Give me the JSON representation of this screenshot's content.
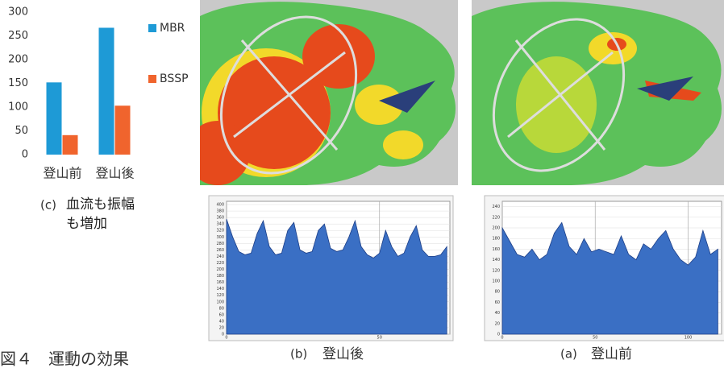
{
  "figure_caption": "図４　運動の効果",
  "chart_data": [
    {
      "type": "bar",
      "categories": [
        "登山前",
        "登山後"
      ],
      "series": [
        {
          "name": "MBR",
          "color": "#1e9ad6",
          "values": [
            152,
            267
          ]
        },
        {
          "name": "BSSP",
          "color": "#f0642d",
          "values": [
            41,
            103
          ]
        }
      ],
      "ylim": [
        0,
        300
      ],
      "yticks": [
        0,
        50,
        100,
        150,
        200,
        250,
        300
      ],
      "legend": "right",
      "caption_label": "(c)",
      "caption": "血流も振幅も増加"
    },
    {
      "type": "area",
      "color": "#3a6fc4",
      "caption_label": "(b)",
      "caption": "登山後",
      "x": [
        0,
        2,
        4,
        6,
        8,
        10,
        12,
        14,
        16,
        18,
        20,
        22,
        24,
        26,
        28,
        30,
        32,
        34,
        36,
        38,
        40,
        42,
        44,
        46,
        48,
        50,
        52,
        54,
        56,
        58,
        60,
        62,
        64,
        66,
        68,
        70,
        72
      ],
      "values": [
        355,
        300,
        255,
        245,
        250,
        310,
        350,
        270,
        245,
        250,
        320,
        345,
        260,
        250,
        255,
        320,
        340,
        265,
        255,
        260,
        300,
        350,
        270,
        245,
        235,
        250,
        320,
        270,
        240,
        250,
        300,
        335,
        260,
        240,
        240,
        245,
        270
      ],
      "xlim": [
        0,
        73
      ],
      "xticks": [
        0,
        50
      ],
      "ylim": [
        0,
        410
      ],
      "yticks": [
        0,
        20,
        40,
        60,
        80,
        100,
        120,
        140,
        160,
        180,
        200,
        220,
        240,
        260,
        280,
        300,
        320,
        340,
        360,
        380,
        400
      ],
      "grid": true
    },
    {
      "type": "area",
      "color": "#3a6fc4",
      "caption_label": "(a)",
      "caption": "登山前",
      "x": [
        0,
        4,
        8,
        12,
        16,
        20,
        24,
        28,
        32,
        36,
        40,
        44,
        48,
        52,
        56,
        60,
        64,
        68,
        72,
        76,
        80,
        84,
        88,
        92,
        96,
        100,
        104,
        108,
        112,
        116
      ],
      "values": [
        200,
        175,
        150,
        145,
        160,
        140,
        150,
        190,
        210,
        165,
        150,
        180,
        155,
        160,
        155,
        150,
        185,
        150,
        140,
        170,
        160,
        180,
        195,
        160,
        140,
        130,
        145,
        195,
        150,
        160
      ],
      "xlim": [
        0,
        118
      ],
      "xticks": [
        0,
        50,
        100
      ],
      "ylim": [
        0,
        250
      ],
      "yticks": [
        0,
        20,
        40,
        60,
        80,
        100,
        120,
        140,
        160,
        180,
        200,
        220,
        240
      ],
      "grid": true
    }
  ]
}
